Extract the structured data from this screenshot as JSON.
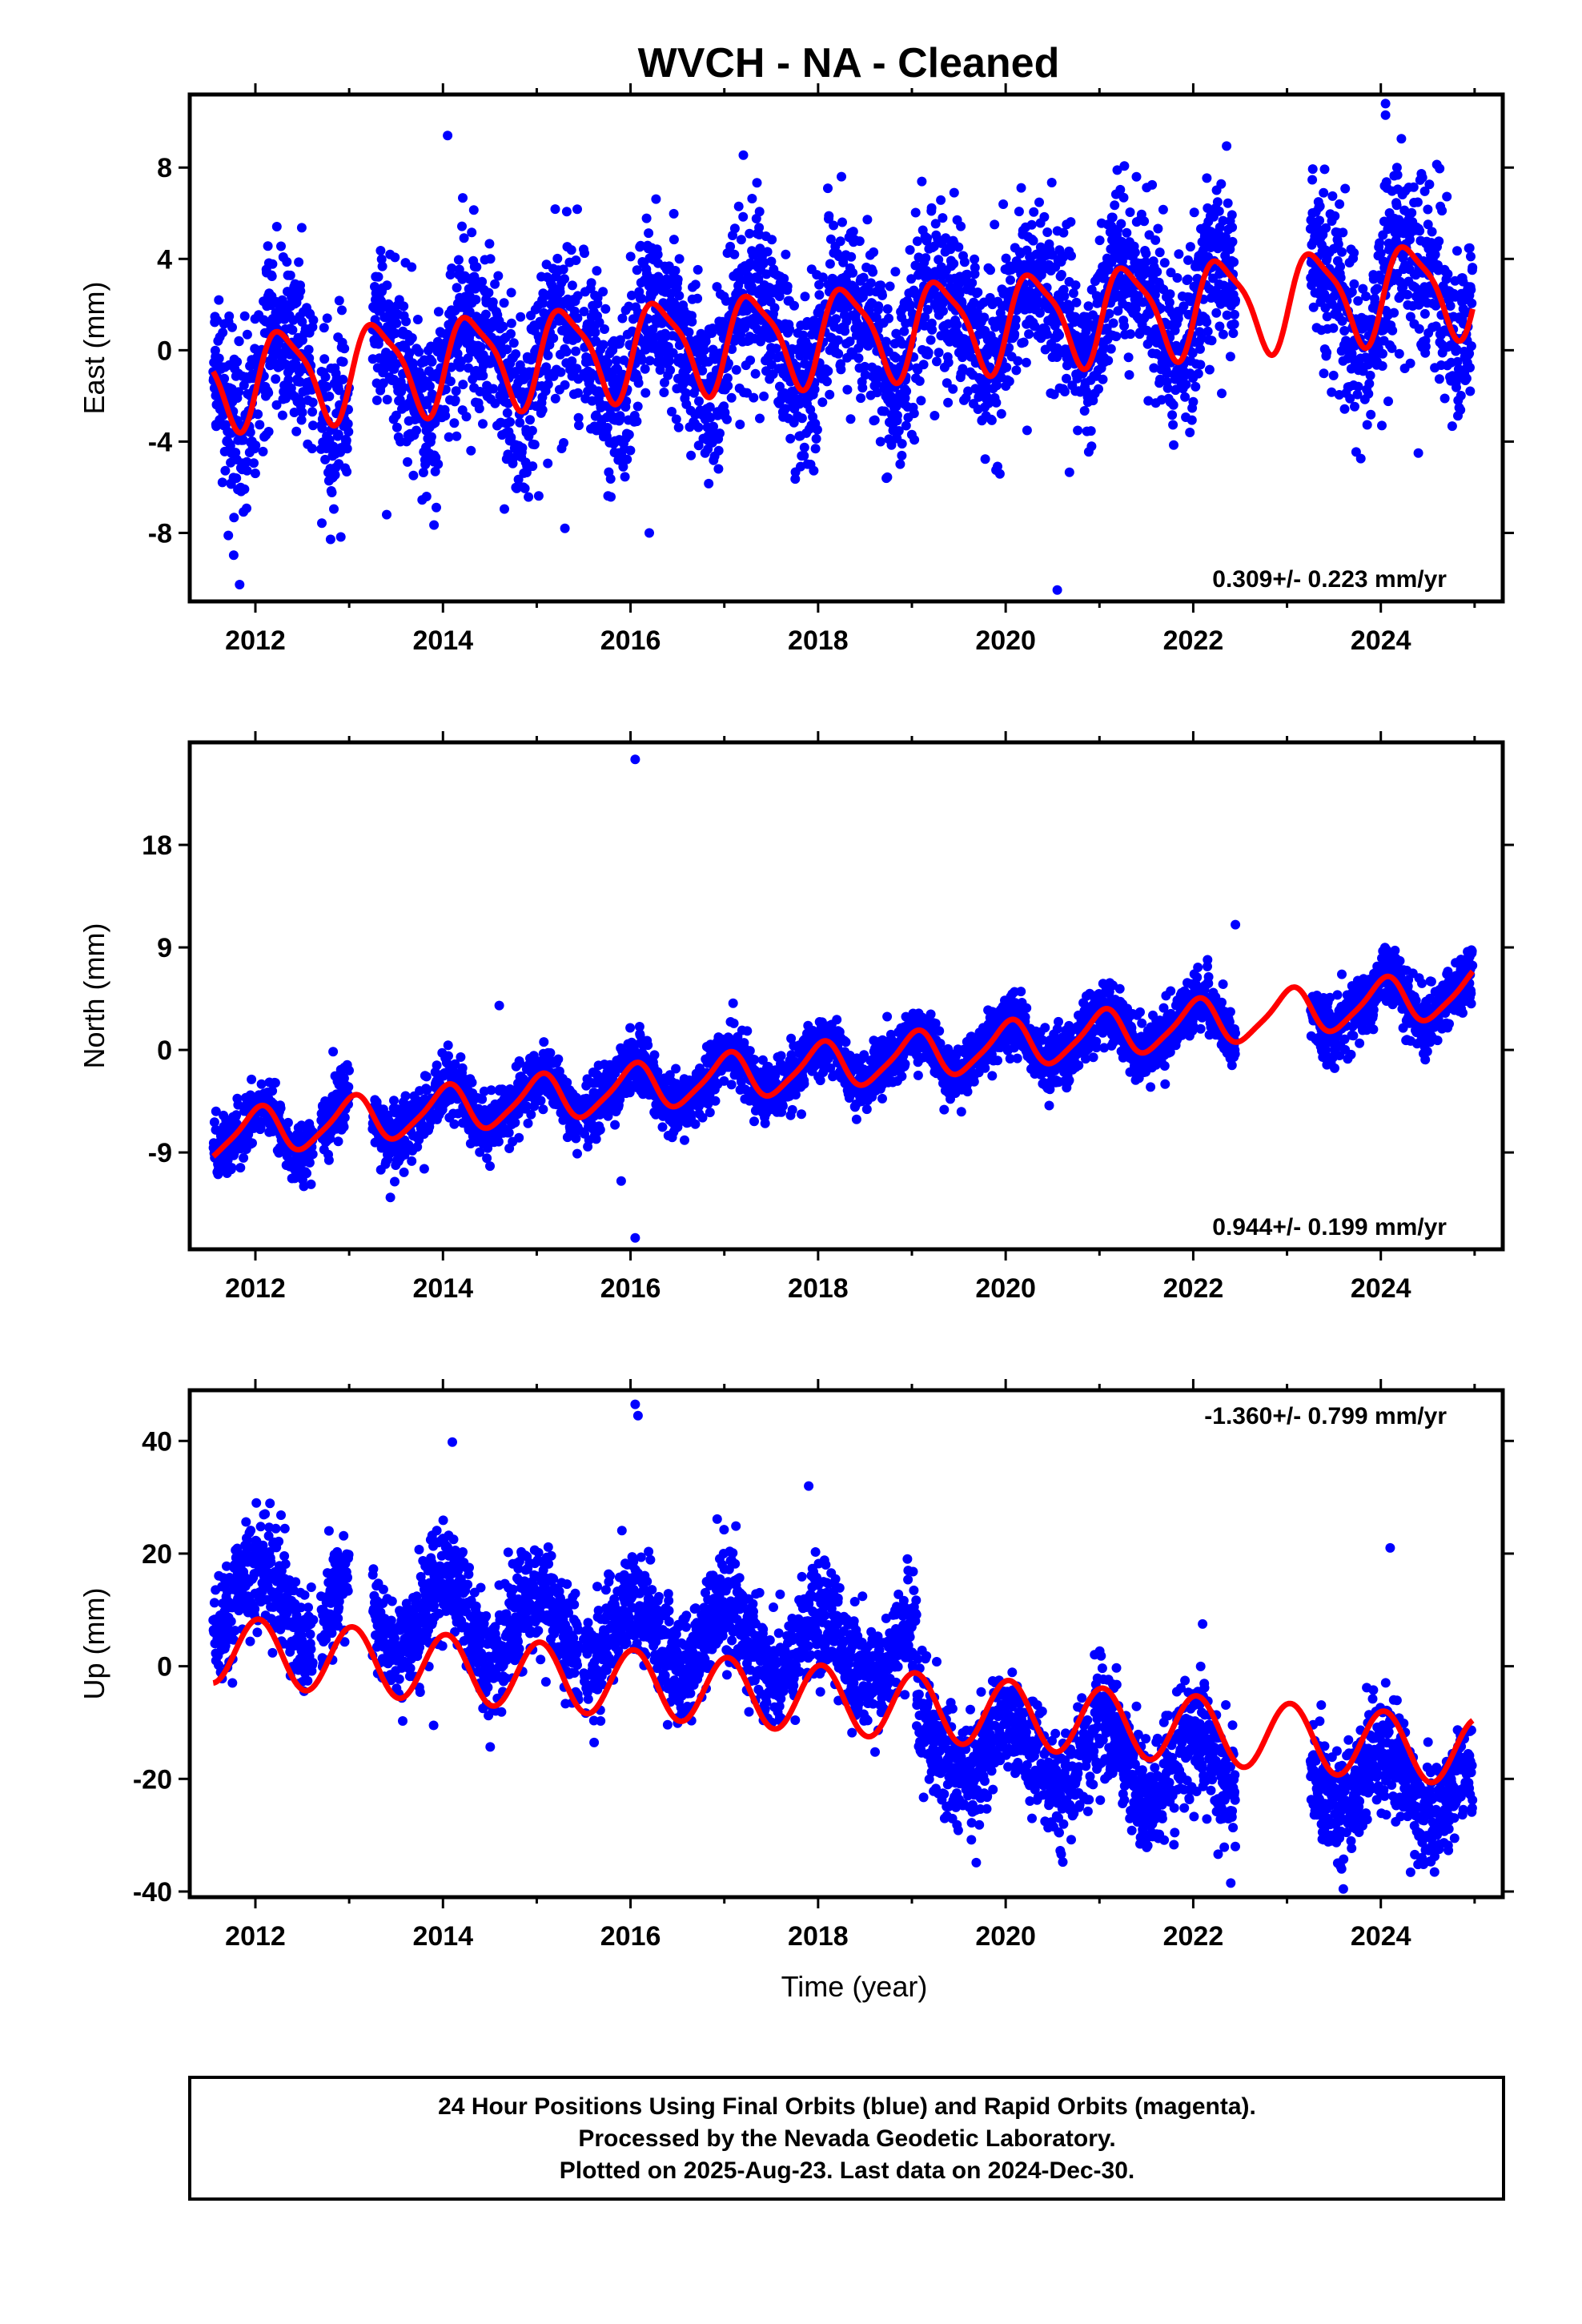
{
  "title": "WVCH  - NA - Cleaned",
  "colors": {
    "points": "#0000ff",
    "fit": "#ff0000",
    "frame": "#000000"
  },
  "chart_data": [
    {
      "type": "scatter",
      "panel": "east",
      "ylabel": "East (mm)",
      "xlabel": "",
      "xlim": [
        2011.3,
        2025.3
      ],
      "ylim": [
        -11,
        11.2
      ],
      "xticks": [
        2012,
        2014,
        2016,
        2018,
        2020,
        2022,
        2024
      ],
      "yticks": [
        -8,
        -4,
        0,
        4,
        8
      ],
      "rate_label": "0.309+/- 0.223 mm/yr",
      "rate_position": "bottom-right",
      "series": [
        {
          "kind": "points",
          "segments": [
            [
              2011.55,
              2012.62
            ],
            [
              2012.7,
              2013.0
            ],
            [
              2013.25,
              2015.45
            ],
            [
              2015.5,
              2022.45
            ],
            [
              2023.25,
              2024.98
            ]
          ],
          "trend_start": -1.3,
          "rate": 0.309,
          "annual_amp": 2.0,
          "annual_phase": -0.35,
          "semi_amp": 0.5,
          "scatter": 1.9,
          "outliers": [
            [
              2020.55,
              -10.5
            ],
            [
              2024.05,
              10.8
            ],
            [
              2024.05,
              10.3
            ],
            [
              2014.05,
              9.4
            ],
            [
              2013.4,
              -7.2
            ],
            [
              2016.2,
              -8.0
            ],
            [
              2015.3,
              -7.8
            ],
            [
              2024.4,
              -4.5
            ]
          ]
        },
        {
          "kind": "fit",
          "x_start": 2011.55,
          "x_end": 2024.98,
          "trend_start": -1.3,
          "rate": 0.309,
          "annual_amp": 2.0,
          "annual_phase": -0.35,
          "semi_amp": 0.5,
          "offsets": []
        }
      ]
    },
    {
      "type": "scatter",
      "panel": "north",
      "ylabel": "North (mm)",
      "xlabel": "",
      "xlim": [
        2011.3,
        2025.3
      ],
      "ylim": [
        -17.5,
        27.0
      ],
      "xticks": [
        2012,
        2014,
        2016,
        2018,
        2020,
        2022,
        2024
      ],
      "yticks": [
        -9,
        0,
        9,
        18
      ],
      "rate_label": "0.944+/- 0.199 mm/yr",
      "rate_position": "bottom-right",
      "series": [
        {
          "kind": "points",
          "segments": [
            [
              2011.55,
              2012.62
            ],
            [
              2012.7,
              2013.0
            ],
            [
              2013.25,
              2015.45
            ],
            [
              2015.5,
              2022.45
            ],
            [
              2023.25,
              2024.98
            ]
          ],
          "trend_start": -7.6,
          "rate": 0.944,
          "annual_amp": 2.0,
          "annual_phase": 1.4,
          "semi_amp": 0.4,
          "scatter": 1.3,
          "outliers": [
            [
              2016.05,
              25.5
            ],
            [
              2016.05,
              -16.5
            ],
            [
              2015.9,
              -11.5
            ],
            [
              2022.45,
              11.0
            ],
            [
              2014.6,
              3.9
            ],
            [
              2021.7,
              -3.0
            ]
          ]
        },
        {
          "kind": "fit",
          "x_start": 2011.55,
          "x_end": 2024.98,
          "trend_start": -7.6,
          "rate": 0.944,
          "annual_amp": 2.0,
          "annual_phase": 1.4,
          "semi_amp": 0.4,
          "offsets": []
        }
      ]
    },
    {
      "type": "scatter",
      "panel": "up",
      "ylabel": "Up (mm)",
      "xlabel": "Time (year)",
      "xlim": [
        2011.3,
        2025.3
      ],
      "ylim": [
        -41,
        49
      ],
      "xticks": [
        2012,
        2014,
        2016,
        2018,
        2020,
        2022,
        2024
      ],
      "yticks": [
        -40,
        -20,
        0,
        20,
        40
      ],
      "rate_label": "-1.360+/- 0.799 mm/yr",
      "rate_position": "top-right",
      "series": [
        {
          "kind": "points",
          "segments": [
            [
              2011.55,
              2012.62
            ],
            [
              2012.7,
              2013.0
            ],
            [
              2013.25,
              2015.45
            ],
            [
              2015.5,
              2022.45
            ],
            [
              2023.25,
              2024.98
            ]
          ],
          "trend_start": 3.0,
          "rate": -1.36,
          "annual_amp": 6.0,
          "annual_phase": 1.35,
          "semi_amp": 0.0,
          "scatter": 5.0,
          "offsets": [
            [
              2019.05,
              -27.0
            ]
          ],
          "points_offset_from_fit": [
            [
              2011.55,
              2019.05,
              9.0
            ],
            [
              2019.05,
              2025.0,
              -7.0
            ]
          ],
          "outliers": [
            [
              2016.05,
              46.5
            ],
            [
              2016.08,
              44.5
            ],
            [
              2014.1,
              39.8
            ],
            [
              2024.1,
              21.0
            ],
            [
              2022.4,
              -38.5
            ],
            [
              2013.9,
              -10.5
            ],
            [
              2022.1,
              7.5
            ],
            [
              2017.9,
              32.0
            ]
          ]
        },
        {
          "kind": "fit",
          "x_start": 2011.55,
          "x_end": 2024.98,
          "trend_start": 3.0,
          "rate": -1.36,
          "annual_amp": 6.0,
          "annual_phase": 1.35,
          "semi_amp": 0.0,
          "offsets": []
        }
      ]
    }
  ],
  "footer": {
    "line1": "24 Hour Positions Using Final Orbits (blue) and Rapid Orbits (magenta).",
    "line2": "Processed by the Nevada Geodetic Laboratory.",
    "line3": "Plotted on 2025-Aug-23. Last data on 2024-Dec-30."
  }
}
